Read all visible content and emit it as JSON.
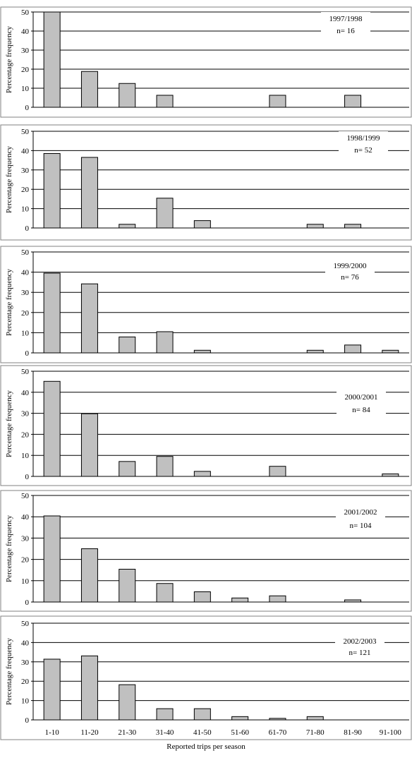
{
  "chart_data": [
    {
      "type": "bar",
      "categories": [
        "1-10",
        "11-20",
        "21-30",
        "31-40",
        "41-50",
        "51-60",
        "61-70",
        "71-80",
        "81-90",
        "91-100"
      ],
      "values": [
        50,
        18.8,
        12.5,
        6.3,
        0,
        0,
        6.3,
        0,
        6.3,
        0
      ],
      "ylabel": "Percentage frequency",
      "ylim": [
        0,
        50
      ],
      "yticks": [
        "0",
        "10",
        "20",
        "30",
        "40",
        "50"
      ],
      "season": "1997/1998",
      "n": "n= 16",
      "grid": true
    },
    {
      "type": "bar",
      "categories": [
        "1-10",
        "11-20",
        "21-30",
        "31-40",
        "41-50",
        "51-60",
        "61-70",
        "71-80",
        "81-90",
        "91-100"
      ],
      "values": [
        38.5,
        36.5,
        1.9,
        15.4,
        3.8,
        0,
        0,
        1.9,
        1.9,
        0
      ],
      "ylabel": "Percentage frequency",
      "ylim": [
        0,
        50
      ],
      "yticks": [
        "0",
        "10",
        "20",
        "30",
        "40",
        "50"
      ],
      "season": "1998/1999",
      "n": "n= 52",
      "grid": true
    },
    {
      "type": "bar",
      "categories": [
        "1-10",
        "11-20",
        "21-30",
        "31-40",
        "41-50",
        "51-60",
        "61-70",
        "71-80",
        "81-90",
        "91-100"
      ],
      "values": [
        39.5,
        34.2,
        7.9,
        10.5,
        1.3,
        0,
        0,
        1.3,
        3.9,
        1.3
      ],
      "ylabel": "Percentage frequency",
      "ylim": [
        0,
        50
      ],
      "yticks": [
        "0",
        "10",
        "20",
        "30",
        "40",
        "50"
      ],
      "season": "1999/2000",
      "n": "n= 76",
      "grid": true
    },
    {
      "type": "bar",
      "categories": [
        "1-10",
        "11-20",
        "21-30",
        "31-40",
        "41-50",
        "51-60",
        "61-70",
        "71-80",
        "81-90",
        "91-100"
      ],
      "values": [
        45.2,
        29.8,
        7.1,
        9.5,
        2.4,
        0,
        4.8,
        0,
        0,
        1.2
      ],
      "ylabel": "Percentage frequency",
      "ylim": [
        0,
        50
      ],
      "yticks": [
        "0",
        "10",
        "20",
        "30",
        "40",
        "50"
      ],
      "season": "2000/2001",
      "n": "n= 84",
      "grid": true
    },
    {
      "type": "bar",
      "categories": [
        "1-10",
        "11-20",
        "21-30",
        "31-40",
        "41-50",
        "51-60",
        "61-70",
        "71-80",
        "81-90",
        "91-100"
      ],
      "values": [
        40.4,
        25,
        15.4,
        8.7,
        4.8,
        1.9,
        2.9,
        0,
        1,
        0
      ],
      "ylabel": "Percentage frequency",
      "ylim": [
        0,
        50
      ],
      "yticks": [
        "0",
        "10",
        "20",
        "30",
        "40",
        "50"
      ],
      "season": "2001/2002",
      "n": "n= 104",
      "grid": true
    },
    {
      "type": "bar",
      "categories": [
        "1-10",
        "11-20",
        "21-30",
        "31-40",
        "41-50",
        "51-60",
        "61-70",
        "71-80",
        "81-90",
        "91-100"
      ],
      "values": [
        31.4,
        33.1,
        18.2,
        5.8,
        5.8,
        1.7,
        0.8,
        1.7,
        0,
        0
      ],
      "ylabel": "Percentage frequency",
      "ylim": [
        0,
        50
      ],
      "yticks": [
        "0",
        "10",
        "20",
        "30",
        "40",
        "50"
      ],
      "season": "2002/2003",
      "n": "n= 121",
      "grid": true
    }
  ],
  "xlabel": "Reported trips per season",
  "colors": {
    "bar_fill": "#c0c0c0",
    "bar_stroke": "#000000",
    "grid": "#000000",
    "frame": "#808080"
  }
}
